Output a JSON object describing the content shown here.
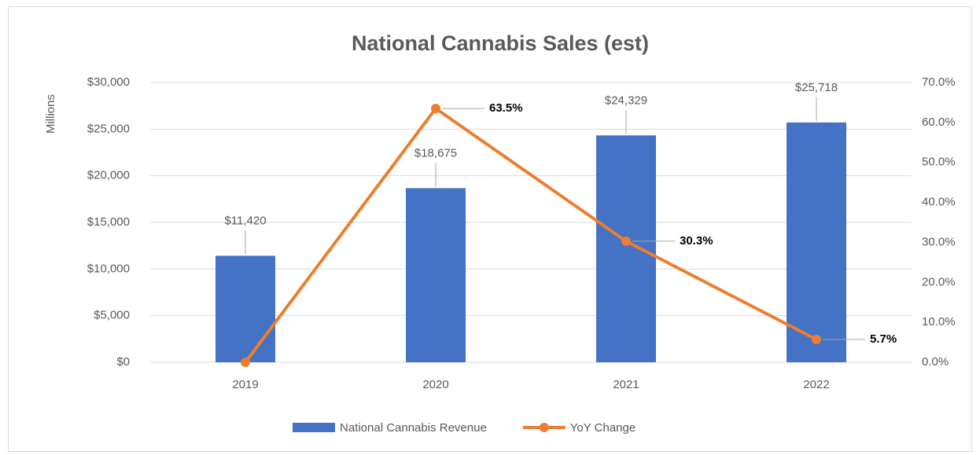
{
  "chart_data": {
    "type": "combo",
    "title": "National Cannabis Sales (est)",
    "ylabel": "Millions",
    "categories": [
      "2019",
      "2020",
      "2021",
      "2022"
    ],
    "series": [
      {
        "name": "National Cannabis Revenue",
        "type": "bar",
        "color": "#4472c4",
        "values": [
          11420,
          18675,
          24329,
          25718
        ],
        "value_labels": [
          "$11,420",
          "$18,675",
          "$24,329",
          "$25,718"
        ]
      },
      {
        "name": "YoY Change",
        "type": "line",
        "axis": "y2",
        "color": "#ed7d31",
        "values": [
          0,
          63.5,
          30.3,
          5.7
        ],
        "value_labels": [
          null,
          "63.5%",
          "30.3%",
          "5.7%"
        ]
      }
    ],
    "ylim": [
      0,
      30000
    ],
    "yticks": [
      {
        "value": 0,
        "label": "$0"
      },
      {
        "value": 5000,
        "label": "$5,000"
      },
      {
        "value": 10000,
        "label": "$10,000"
      },
      {
        "value": 15000,
        "label": "$15,000"
      },
      {
        "value": 20000,
        "label": "$20,000"
      },
      {
        "value": 25000,
        "label": "$25,000"
      },
      {
        "value": 30000,
        "label": "$30,000"
      }
    ],
    "y2lim": [
      0,
      70
    ],
    "y2ticks": [
      {
        "value": 0,
        "label": "0.0%"
      },
      {
        "value": 10,
        "label": "10.0%"
      },
      {
        "value": 20,
        "label": "20.0%"
      },
      {
        "value": 30,
        "label": "30.0%"
      },
      {
        "value": 40,
        "label": "40.0%"
      },
      {
        "value": 50,
        "label": "50.0%"
      },
      {
        "value": 60,
        "label": "60.0%"
      },
      {
        "value": 70,
        "label": "70.0%"
      }
    ],
    "grid": true,
    "legend": "bottom"
  }
}
